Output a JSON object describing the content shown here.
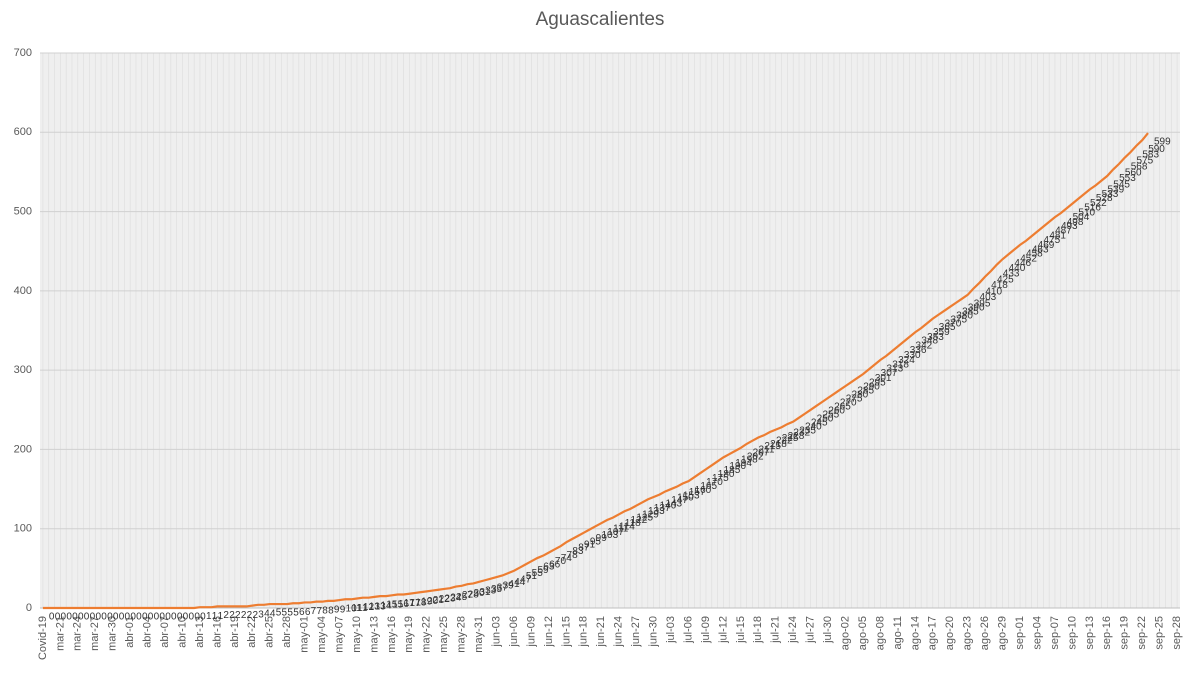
{
  "chart_data": {
    "type": "line",
    "title": "Aguascalientes",
    "categories": [
      "Covid-19",
      null,
      null,
      "mar-21",
      null,
      null,
      "mar-24",
      null,
      null,
      "mar-27",
      null,
      null,
      "mar-30",
      null,
      null,
      "abr-01",
      null,
      null,
      "abr-04",
      null,
      null,
      "abr-07",
      null,
      null,
      "abr-10",
      null,
      null,
      "abr-13",
      null,
      null,
      "abr-16",
      null,
      null,
      "abr-19",
      null,
      null,
      "abr-22",
      null,
      null,
      "abr-25",
      null,
      null,
      "abr-28",
      null,
      null,
      "may-01",
      null,
      null,
      "may-04",
      null,
      null,
      "may-07",
      null,
      null,
      "may-10",
      null,
      null,
      "may-13",
      null,
      null,
      "may-16",
      null,
      null,
      "may-19",
      null,
      null,
      "may-22",
      null,
      null,
      "may-25",
      null,
      null,
      "may-28",
      null,
      null,
      "may-31",
      null,
      null,
      "jun-03",
      null,
      null,
      "jun-06",
      null,
      null,
      "jun-09",
      null,
      null,
      "jun-12",
      null,
      null,
      "jun-15",
      null,
      null,
      "jun-18",
      null,
      null,
      "jun-21",
      null,
      null,
      "jun-24",
      null,
      null,
      "jun-27",
      null,
      null,
      "jun-30",
      null,
      null,
      "jul-03",
      null,
      null,
      "jul-06",
      null,
      null,
      "jul-09",
      null,
      null,
      "jul-12",
      null,
      null,
      "jul-15",
      null,
      null,
      "jul-18",
      null,
      null,
      "jul-21",
      null,
      null,
      "jul-24",
      null,
      null,
      "jul-27",
      null,
      null,
      "jul-30",
      null,
      null,
      "ago-02",
      null,
      null,
      "ago-05",
      null,
      null,
      "ago-08",
      null,
      null,
      "ago-11",
      null,
      null,
      "ago-14",
      null,
      null,
      "ago-17",
      null,
      null,
      "ago-20",
      null,
      null,
      "ago-23",
      null,
      null,
      "ago-26",
      null,
      null,
      "ago-29",
      null,
      null,
      "sep-01",
      null,
      null,
      "sep-04",
      null,
      null,
      "sep-07",
      null,
      null,
      "sep-10",
      null,
      null,
      "sep-13",
      null,
      null,
      "sep-16",
      null,
      null,
      "sep-19",
      null,
      null,
      "sep-22",
      null,
      null,
      "sep-25",
      null,
      null,
      "sep-28"
    ],
    "values": [
      0,
      0,
      0,
      0,
      0,
      0,
      0,
      0,
      0,
      0,
      0,
      0,
      0,
      0,
      0,
      0,
      0,
      0,
      0,
      0,
      0,
      0,
      0,
      0,
      0,
      0,
      0,
      1,
      1,
      1,
      2,
      2,
      2,
      2,
      2,
      2,
      3,
      4,
      4,
      5,
      5,
      5,
      5,
      6,
      6,
      7,
      7,
      8,
      8,
      9,
      9,
      10,
      11,
      11,
      12,
      13,
      13,
      14,
      15,
      15,
      16,
      17,
      17,
      18,
      19,
      20,
      21,
      22,
      23,
      24,
      25,
      27,
      28,
      30,
      31,
      33,
      35,
      37,
      39,
      41,
      44,
      47,
      51,
      55,
      59,
      63,
      66,
      70,
      74,
      78,
      83,
      87,
      91,
      95,
      99,
      103,
      107,
      111,
      114,
      118,
      122,
      125,
      129,
      133,
      137,
      140,
      143,
      147,
      150,
      153,
      157,
      160,
      165,
      170,
      175,
      180,
      185,
      190,
      194,
      198,
      202,
      207,
      211,
      215,
      218,
      222,
      225,
      228,
      232,
      235,
      240,
      245,
      250,
      255,
      260,
      265,
      270,
      275,
      280,
      285,
      290,
      295,
      301,
      307,
      313,
      318,
      324,
      330,
      336,
      342,
      348,
      353,
      359,
      365,
      370,
      375,
      380,
      385,
      390,
      395,
      403,
      410,
      418,
      425,
      433,
      440,
      446,
      452,
      458,
      463,
      469,
      475,
      481,
      487,
      493,
      498,
      504,
      510,
      516,
      522,
      528,
      533,
      539,
      545,
      553,
      560,
      568,
      575,
      583,
      590,
      599,
      null,
      null,
      null,
      null,
      null
    ],
    "color": "#ed7d31",
    "data_labels": true,
    "ylim": [
      0,
      700
    ],
    "yticks": [
      0,
      100,
      200,
      300,
      400,
      500,
      600,
      700
    ],
    "grid": true
  }
}
